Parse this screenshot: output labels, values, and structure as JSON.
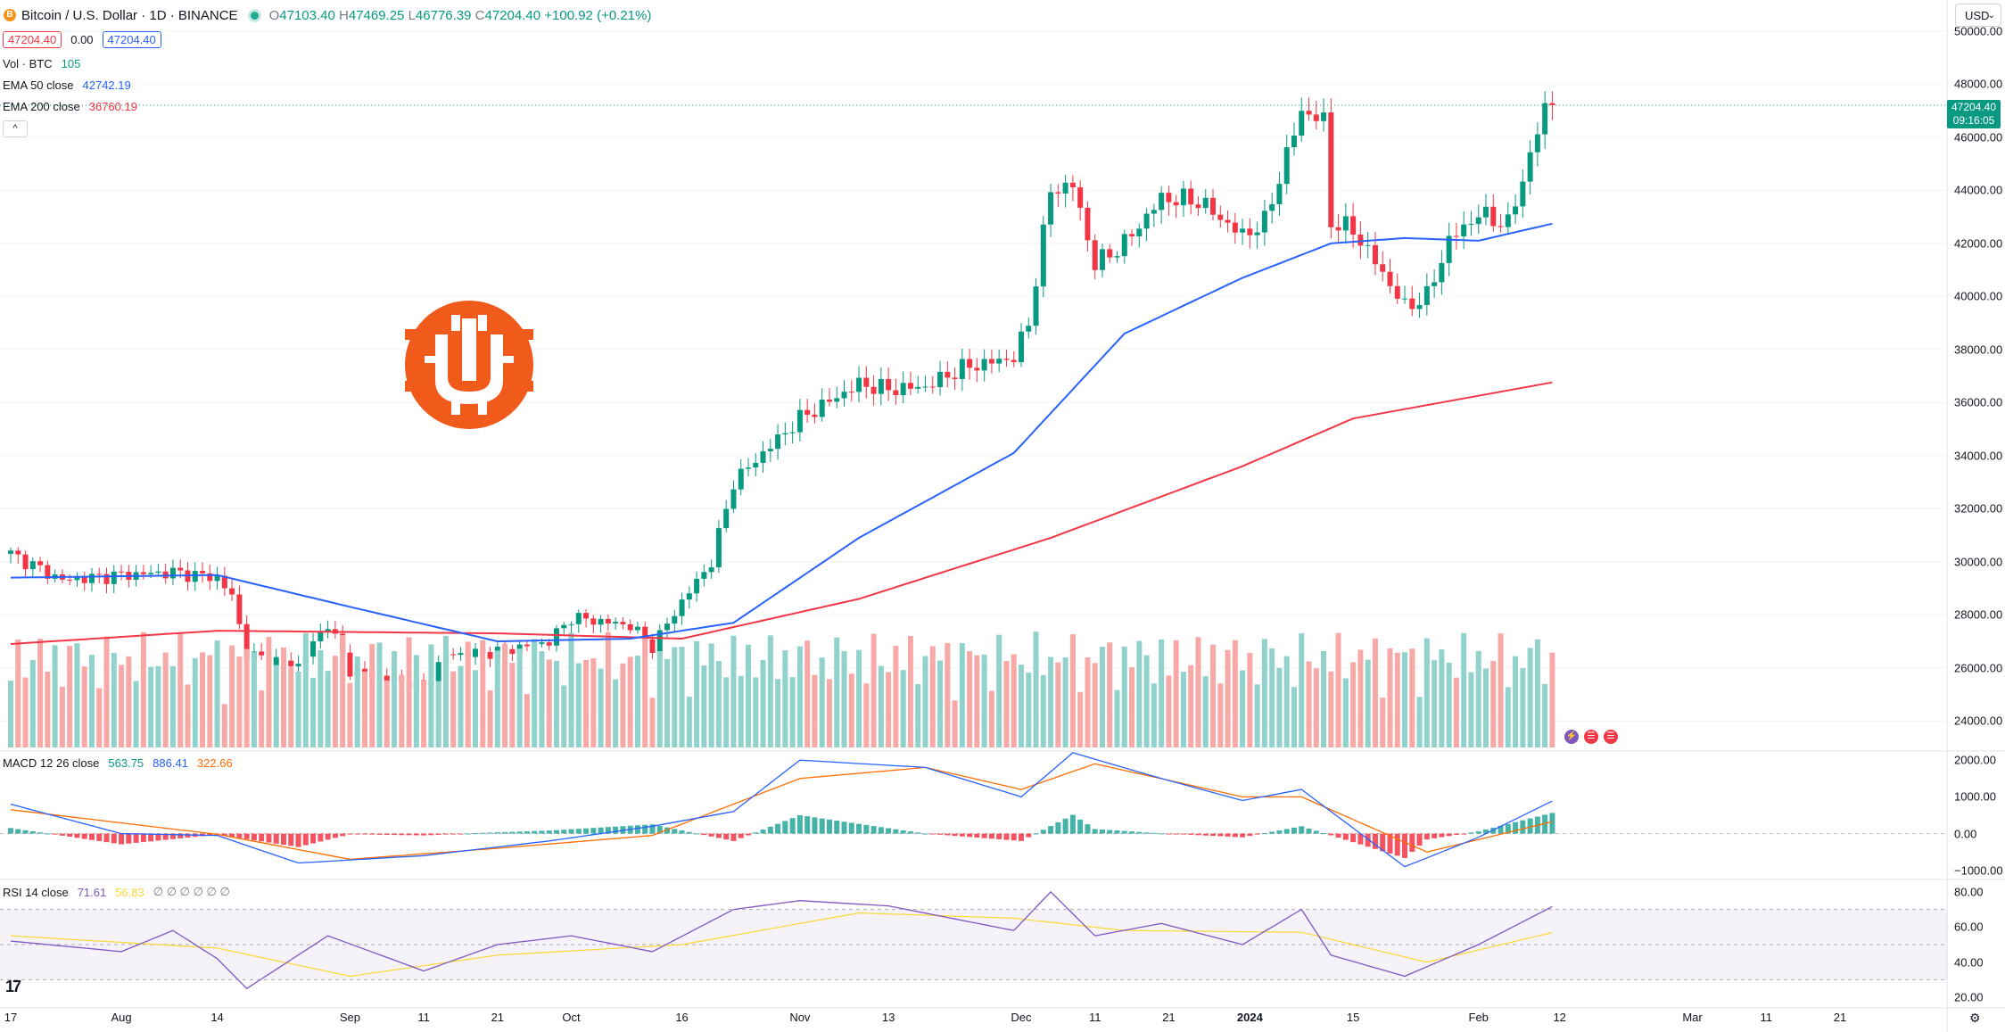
{
  "symbol": {
    "title": "Bitcoin / U.S. Dollar · 1D · BINANCE",
    "coin_glyph": "B",
    "ohlc": {
      "o_label": "O",
      "o": "47103.40",
      "h_label": "H",
      "h": "47469.25",
      "l_label": "L",
      "l": "46776.39",
      "c_label": "C",
      "c": "47204.40",
      "change": "+100.92 (+0.21%)"
    },
    "sell_price": "47204.40",
    "spread": "0.00",
    "buy_price": "47204.40",
    "collapse_glyph": "^"
  },
  "currency": {
    "label": "USD",
    "chevron": "⌄"
  },
  "indicators": {
    "volume": {
      "label": "Vol · BTC",
      "value": "105"
    },
    "ema50": {
      "label": "EMA 50 close",
      "value": "42742.19",
      "color": "#2962ff"
    },
    "ema200": {
      "label": "EMA 200 close",
      "value": "36760.19",
      "color": "#f23645"
    },
    "macd": {
      "label": "MACD 12 26 close",
      "v1": "563.75",
      "v2": "886.41",
      "v3": "322.66"
    },
    "rsi": {
      "label": "RSI 14 close",
      "v1": "71.61",
      "v2": "56.83",
      "v3": "∅ ∅ ∅ ∅ ∅ ∅"
    }
  },
  "last_price": {
    "price": "47204.40",
    "countdown": "09:16:05"
  },
  "price_axis": [
    "50000.00",
    "48000.00",
    "46000.00",
    "44000.00",
    "42000.00",
    "40000.00",
    "38000.00",
    "36000.00",
    "34000.00",
    "32000.00",
    "30000.00",
    "28000.00",
    "26000.00",
    "24000.00"
  ],
  "macd_axis": [
    "2000.00",
    "1000.00",
    "0.00",
    "−1000.00"
  ],
  "rsi_axis": [
    "80.00",
    "60.00",
    "40.00",
    "20.00"
  ],
  "time_axis": [
    {
      "label": "17"
    },
    {
      "label": "Aug"
    },
    {
      "label": "14"
    },
    {
      "label": "Sep"
    },
    {
      "label": "11"
    },
    {
      "label": "21"
    },
    {
      "label": "Oct"
    },
    {
      "label": "16"
    },
    {
      "label": "Nov"
    },
    {
      "label": "13"
    },
    {
      "label": "Dec"
    },
    {
      "label": "11"
    },
    {
      "label": "21"
    },
    {
      "label": "2024",
      "bold": true
    },
    {
      "label": "15"
    },
    {
      "label": "Feb"
    },
    {
      "label": "12"
    },
    {
      "label": "Mar"
    },
    {
      "label": "11"
    },
    {
      "label": "21"
    }
  ],
  "icons": {
    "logo": "orange-coin-logo",
    "tradingview": "tradingview-logo",
    "settings": "gear-icon"
  },
  "tv_logo_text": "17",
  "gear_glyph": "⚙",
  "colors": {
    "up": "#089981",
    "down": "#f23645",
    "up_vol": "#92d2cc",
    "down_vol": "#f7a9a7",
    "ema50": "#2962ff",
    "ema200": "#f23645",
    "macd_line": "#2962ff",
    "signal_line": "#ff6d00",
    "rsi_line": "#7e57c2",
    "rsi_ma": "#fdd835",
    "logo": "#f05a1a"
  },
  "chart_data": [
    {
      "type": "candlestick",
      "title": "Bitcoin / U.S. Dollar · 1D · BINANCE",
      "x_range": [
        "2023-07-17",
        "2024-03-21"
      ],
      "ylim": [
        23000,
        50500
      ],
      "last_close": 47204.4,
      "close_anchors": [
        [
          "2023-07-17",
          30300
        ],
        [
          "2023-07-24",
          29300
        ],
        [
          "2023-08-01",
          29500
        ],
        [
          "2023-08-08",
          29600
        ],
        [
          "2023-08-14",
          29400
        ],
        [
          "2023-08-16",
          28700
        ],
        [
          "2023-08-18",
          26500
        ],
        [
          "2023-08-25",
          26100
        ],
        [
          "2023-08-29",
          27700
        ],
        [
          "2023-09-01",
          25900
        ],
        [
          "2023-09-11",
          25300
        ],
        [
          "2023-09-14",
          26500
        ],
        [
          "2023-09-21",
          26600
        ],
        [
          "2023-09-28",
          27000
        ],
        [
          "2023-10-01",
          27900
        ],
        [
          "2023-10-09",
          27600
        ],
        [
          "2023-10-12",
          26800
        ],
        [
          "2023-10-16",
          28500
        ],
        [
          "2023-10-20",
          30000
        ],
        [
          "2023-10-23",
          33000
        ],
        [
          "2023-10-27",
          34100
        ],
        [
          "2023-11-01",
          35400
        ],
        [
          "2023-11-09",
          36700
        ],
        [
          "2023-11-13",
          36500
        ],
        [
          "2023-11-18",
          36600
        ],
        [
          "2023-11-23",
          37300
        ],
        [
          "2023-11-30",
          37700
        ],
        [
          "2023-12-02",
          39000
        ],
        [
          "2023-12-05",
          44000
        ],
        [
          "2023-12-08",
          44200
        ],
        [
          "2023-12-11",
          41200
        ],
        [
          "2023-12-15",
          42000
        ],
        [
          "2023-12-20",
          43700
        ],
        [
          "2023-12-25",
          43600
        ],
        [
          "2023-12-31",
          42300
        ],
        [
          "2024-01-03",
          42800
        ],
        [
          "2024-01-08",
          47000
        ],
        [
          "2024-01-11",
          46600
        ],
        [
          "2024-01-12",
          42800
        ],
        [
          "2024-01-15",
          42500
        ],
        [
          "2024-01-18",
          41300
        ],
        [
          "2024-01-22",
          39600
        ],
        [
          "2024-01-25",
          40000
        ],
        [
          "2024-01-28",
          42100
        ],
        [
          "2024-02-01",
          43100
        ],
        [
          "2024-02-05",
          42700
        ],
        [
          "2024-02-08",
          45300
        ],
        [
          "2024-02-10",
          47100
        ],
        [
          "2024-02-11",
          47204
        ]
      ],
      "ema50": [
        [
          "2023-07-17",
          29400
        ],
        [
          "2023-08-14",
          29500
        ],
        [
          "2023-09-01",
          28300
        ],
        [
          "2023-09-21",
          27000
        ],
        [
          "2023-10-09",
          27100
        ],
        [
          "2023-10-23",
          27700
        ],
        [
          "2023-11-09",
          30900
        ],
        [
          "2023-11-30",
          34100
        ],
        [
          "2023-12-15",
          38600
        ],
        [
          "2023-12-31",
          40700
        ],
        [
          "2024-01-12",
          42000
        ],
        [
          "2024-01-22",
          42200
        ],
        [
          "2024-02-01",
          42100
        ],
        [
          "2024-02-11",
          42742
        ]
      ],
      "ema200": [
        [
          "2023-07-17",
          26900
        ],
        [
          "2023-08-14",
          27400
        ],
        [
          "2023-09-21",
          27300
        ],
        [
          "2023-10-16",
          27100
        ],
        [
          "2023-11-09",
          28600
        ],
        [
          "2023-12-05",
          30900
        ],
        [
          "2023-12-31",
          33600
        ],
        [
          "2024-01-15",
          35400
        ],
        [
          "2024-02-11",
          36760
        ]
      ]
    },
    {
      "type": "bar",
      "title": "Vol · BTC",
      "last_value": 105
    },
    {
      "type": "line",
      "title": "MACD 12 26 close",
      "ylim": [
        -1200,
        2150
      ],
      "macd": [
        [
          "2023-07-17",
          800
        ],
        [
          "2023-08-01",
          0
        ],
        [
          "2023-08-14",
          -50
        ],
        [
          "2023-08-25",
          -800
        ],
        [
          "2023-09-11",
          -600
        ],
        [
          "2023-09-28",
          -200
        ],
        [
          "2023-10-12",
          200
        ],
        [
          "2023-10-23",
          600
        ],
        [
          "2023-11-01",
          2000
        ],
        [
          "2023-11-18",
          1800
        ],
        [
          "2023-12-01",
          1000
        ],
        [
          "2023-12-08",
          2200
        ],
        [
          "2023-12-20",
          1500
        ],
        [
          "2023-12-31",
          900
        ],
        [
          "2024-01-08",
          1200
        ],
        [
          "2024-01-22",
          -900
        ],
        [
          "2024-02-01",
          -100
        ],
        [
          "2024-02-11",
          886
        ]
      ],
      "signal": [
        [
          "2023-07-17",
          650
        ],
        [
          "2023-08-14",
          -20
        ],
        [
          "2023-09-01",
          -700
        ],
        [
          "2023-09-21",
          -400
        ],
        [
          "2023-10-12",
          -50
        ],
        [
          "2023-11-01",
          1500
        ],
        [
          "2023-11-18",
          1800
        ],
        [
          "2023-12-01",
          1200
        ],
        [
          "2023-12-11",
          1900
        ],
        [
          "2023-12-31",
          1000
        ],
        [
          "2024-01-08",
          1000
        ],
        [
          "2024-01-25",
          -500
        ],
        [
          "2024-02-11",
          323
        ]
      ]
    },
    {
      "type": "line",
      "title": "RSI 14 close",
      "ylim": [
        15,
        85
      ],
      "bands": [
        70,
        50,
        30
      ],
      "rsi": [
        [
          "2023-07-17",
          52
        ],
        [
          "2023-08-01",
          46
        ],
        [
          "2023-08-08",
          58
        ],
        [
          "2023-08-14",
          42
        ],
        [
          "2023-08-18",
          25
        ],
        [
          "2023-08-29",
          55
        ],
        [
          "2023-09-11",
          35
        ],
        [
          "2023-09-21",
          50
        ],
        [
          "2023-10-01",
          55
        ],
        [
          "2023-10-12",
          46
        ],
        [
          "2023-10-23",
          70
        ],
        [
          "2023-11-01",
          75
        ],
        [
          "2023-11-13",
          72
        ],
        [
          "2023-11-30",
          58
        ],
        [
          "2023-12-05",
          80
        ],
        [
          "2023-12-11",
          55
        ],
        [
          "2023-12-20",
          62
        ],
        [
          "2023-12-31",
          50
        ],
        [
          "2024-01-08",
          70
        ],
        [
          "2024-01-12",
          44
        ],
        [
          "2024-01-22",
          32
        ],
        [
          "2024-02-01",
          50
        ],
        [
          "2024-02-11",
          71.61
        ]
      ],
      "rsi_ma": [
        [
          "2023-07-17",
          55
        ],
        [
          "2023-08-14",
          48
        ],
        [
          "2023-09-01",
          32
        ],
        [
          "2023-09-21",
          44
        ],
        [
          "2023-10-16",
          50
        ],
        [
          "2023-11-09",
          68
        ],
        [
          "2023-11-30",
          65
        ],
        [
          "2023-12-15",
          58
        ],
        [
          "2024-01-08",
          57
        ],
        [
          "2024-01-25",
          40
        ],
        [
          "2024-02-11",
          56.83
        ]
      ]
    }
  ]
}
